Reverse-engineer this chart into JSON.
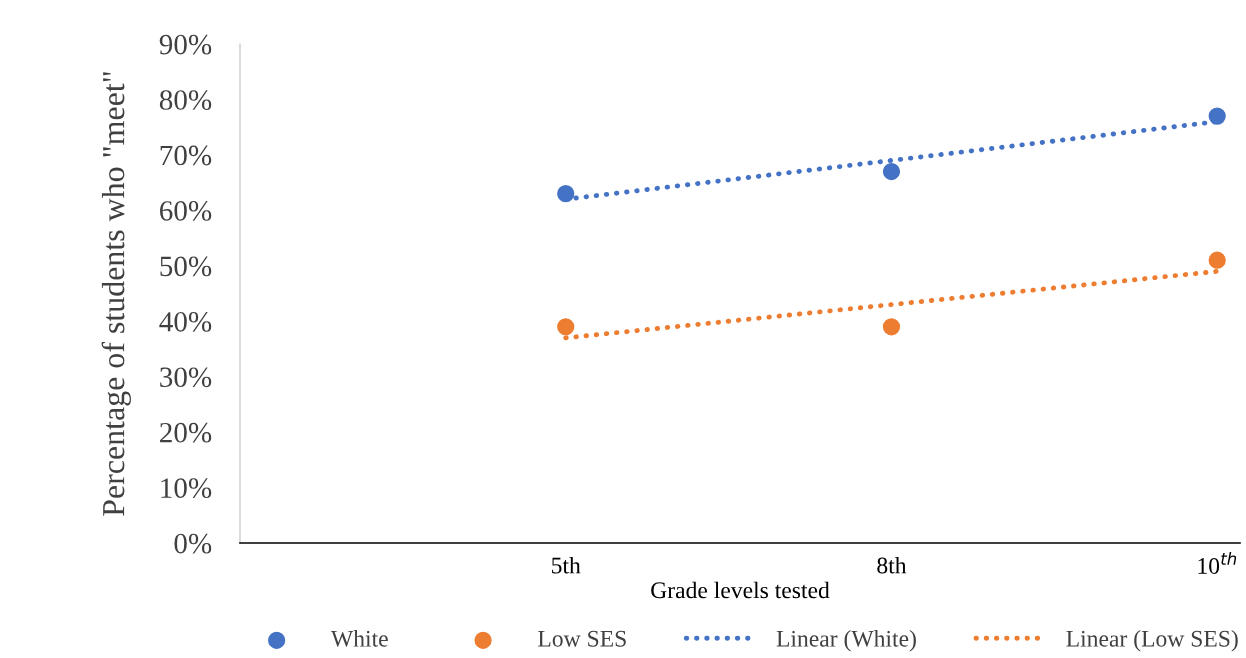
{
  "chart_data": {
    "type": "scatter",
    "xlabel": "Grade levels tested",
    "ylabel": "Percentage of students who \"meet\"",
    "categories": [
      "5th",
      "8th",
      "10$^{th}$"
    ],
    "ylim": [
      0,
      90
    ],
    "yticks": [
      {
        "value": 0,
        "label": "0%"
      },
      {
        "value": 10,
        "label": "10%"
      },
      {
        "value": 20,
        "label": "20%"
      },
      {
        "value": 30,
        "label": "30%"
      },
      {
        "value": 40,
        "label": "40%"
      },
      {
        "value": 50,
        "label": "50%"
      },
      {
        "value": 60,
        "label": "60%"
      },
      {
        "value": 70,
        "label": "70%"
      },
      {
        "value": 80,
        "label": "80%"
      },
      {
        "value": 90,
        "label": "90%"
      }
    ],
    "grid": false,
    "legend": "bottom",
    "marker": "circle",
    "series": [
      {
        "name": "White",
        "color": "#4472c4",
        "values": [
          63,
          67,
          77
        ]
      },
      {
        "name": "Low SES",
        "color": "#ed7d31",
        "values": [
          39,
          39,
          51
        ]
      },
      {
        "name": "Linear (White)",
        "type": "line",
        "line_style": "dotted",
        "marker": "none",
        "color": "#4472c4",
        "values": [
          62,
          69,
          76
        ]
      },
      {
        "name": "Linear (Low SES)",
        "type": "line",
        "line_style": "dotted",
        "marker": "none",
        "color": "#ed7d31",
        "values": [
          37,
          43,
          49
        ]
      }
    ]
  }
}
